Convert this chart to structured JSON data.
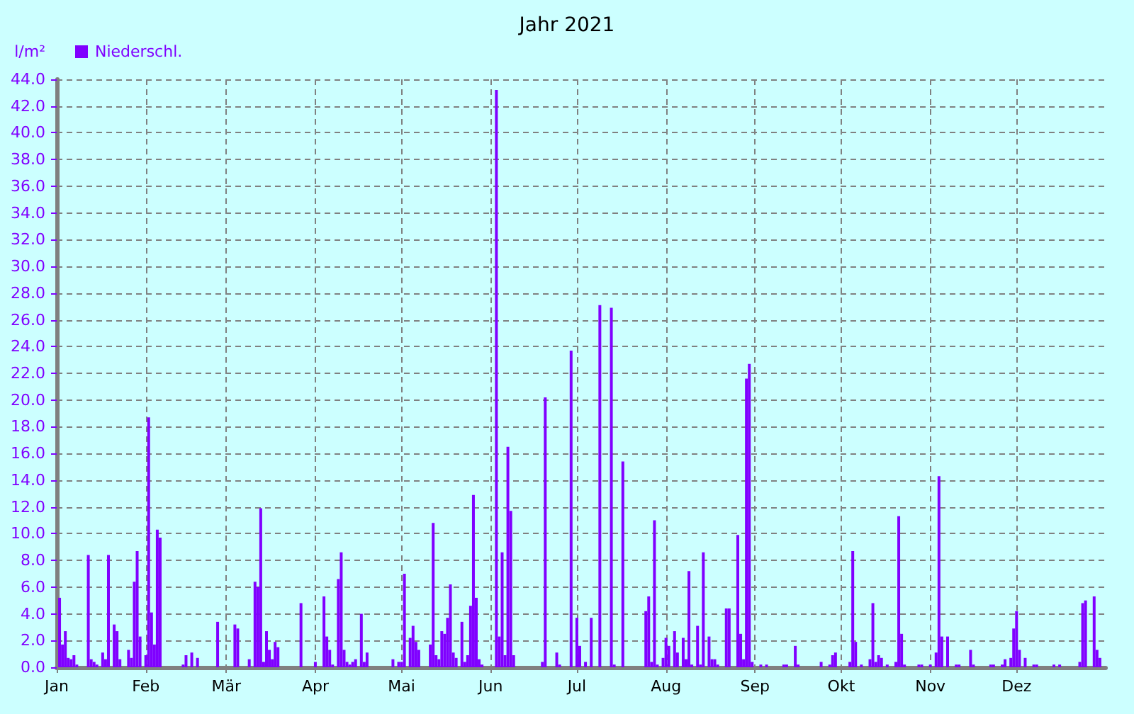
{
  "chart_data": {
    "type": "bar",
    "title": "Jahr 2021",
    "ylabel": "l/m²",
    "x": [
      "2021-01-02",
      "2021-01-03",
      "2021-01-04",
      "2021-01-05",
      "2021-01-06",
      "2021-01-07",
      "2021-01-08",
      "2021-01-12",
      "2021-01-13",
      "2021-01-14",
      "2021-01-15",
      "2021-01-17",
      "2021-01-18",
      "2021-01-19",
      "2021-01-21",
      "2021-01-22",
      "2021-01-23",
      "2021-01-26",
      "2021-01-27",
      "2021-01-28",
      "2021-01-29",
      "2021-01-30",
      "2021-02-01",
      "2021-02-02",
      "2021-02-03",
      "2021-02-04",
      "2021-02-05",
      "2021-02-06",
      "2021-02-14",
      "2021-02-15",
      "2021-02-17",
      "2021-02-19",
      "2021-02-26",
      "2021-03-04",
      "2021-03-05",
      "2021-03-09",
      "2021-03-11",
      "2021-03-12",
      "2021-03-13",
      "2021-03-14",
      "2021-03-15",
      "2021-03-16",
      "2021-03-17",
      "2021-03-18",
      "2021-03-19",
      "2021-03-27",
      "2021-04-01",
      "2021-04-04",
      "2021-04-05",
      "2021-04-06",
      "2021-04-07",
      "2021-04-09",
      "2021-04-10",
      "2021-04-11",
      "2021-04-12",
      "2021-04-13",
      "2021-04-14",
      "2021-04-15",
      "2021-04-17",
      "2021-04-18",
      "2021-04-19",
      "2021-04-28",
      "2021-04-30",
      "2021-05-01",
      "2021-05-02",
      "2021-05-04",
      "2021-05-05",
      "2021-05-06",
      "2021-05-07",
      "2021-05-11",
      "2021-05-12",
      "2021-05-13",
      "2021-05-14",
      "2021-05-15",
      "2021-05-16",
      "2021-05-17",
      "2021-05-18",
      "2021-05-19",
      "2021-05-20",
      "2021-05-22",
      "2021-05-23",
      "2021-05-24",
      "2021-05-25",
      "2021-05-26",
      "2021-05-27",
      "2021-05-28",
      "2021-05-29",
      "2021-06-03",
      "2021-06-04",
      "2021-06-05",
      "2021-06-06",
      "2021-06-07",
      "2021-06-08",
      "2021-06-09",
      "2021-06-19",
      "2021-06-20",
      "2021-06-24",
      "2021-06-25",
      "2021-06-29",
      "2021-07-01",
      "2021-07-02",
      "2021-07-04",
      "2021-07-06",
      "2021-07-09",
      "2021-07-13",
      "2021-07-14",
      "2021-07-17",
      "2021-07-25",
      "2021-07-26",
      "2021-07-27",
      "2021-07-28",
      "2021-07-29",
      "2021-07-31",
      "2021-08-01",
      "2021-08-02",
      "2021-08-04",
      "2021-08-05",
      "2021-08-07",
      "2021-08-08",
      "2021-08-09",
      "2021-08-10",
      "2021-08-12",
      "2021-08-13",
      "2021-08-14",
      "2021-08-16",
      "2021-08-17",
      "2021-08-18",
      "2021-08-19",
      "2021-08-22",
      "2021-08-23",
      "2021-08-26",
      "2021-08-27",
      "2021-08-28",
      "2021-08-29",
      "2021-08-30",
      "2021-08-31",
      "2021-09-03",
      "2021-09-05",
      "2021-09-11",
      "2021-09-12",
      "2021-09-15",
      "2021-09-16",
      "2021-09-24",
      "2021-09-27",
      "2021-09-28",
      "2021-09-29",
      "2021-10-04",
      "2021-10-05",
      "2021-10-06",
      "2021-10-08",
      "2021-10-11",
      "2021-10-12",
      "2021-10-13",
      "2021-10-14",
      "2021-10-15",
      "2021-10-17",
      "2021-10-20",
      "2021-10-21",
      "2021-10-22",
      "2021-10-23",
      "2021-10-28",
      "2021-10-29",
      "2021-11-01",
      "2021-11-03",
      "2021-11-04",
      "2021-11-05",
      "2021-11-07",
      "2021-11-10",
      "2021-11-11",
      "2021-11-15",
      "2021-11-16",
      "2021-11-22",
      "2021-11-23",
      "2021-11-26",
      "2021-11-27",
      "2021-11-29",
      "2021-11-30",
      "2021-12-01",
      "2021-12-02",
      "2021-12-04",
      "2021-12-07",
      "2021-12-08",
      "2021-12-14",
      "2021-12-16",
      "2021-12-23",
      "2021-12-24",
      "2021-12-25",
      "2021-12-28",
      "2021-12-29",
      "2021-12-30"
    ],
    "series": [
      {
        "name": "Niederschl.",
        "color": "#8000ff",
        "values": [
          5.2,
          1.7,
          2.7,
          0.7,
          0.6,
          0.9,
          0.2,
          8.4,
          0.6,
          0.4,
          0.2,
          1.1,
          0.6,
          8.4,
          3.2,
          2.7,
          0.6,
          1.3,
          0.7,
          6.4,
          8.7,
          2.3,
          0.9,
          18.7,
          4.1,
          1.7,
          10.3,
          9.7,
          0.2,
          0.9,
          1.1,
          0.7,
          3.4,
          3.2,
          2.9,
          0.6,
          6.4,
          6.0,
          11.9,
          0.4,
          2.7,
          1.3,
          0.6,
          1.9,
          1.5,
          4.8,
          0.4,
          5.3,
          2.3,
          1.3,
          0.2,
          6.6,
          8.6,
          1.3,
          0.4,
          0.2,
          0.4,
          0.6,
          4.0,
          0.4,
          1.1,
          0.6,
          0.4,
          0.4,
          7.0,
          2.2,
          3.1,
          1.9,
          1.3,
          1.7,
          10.8,
          0.9,
          0.6,
          2.7,
          2.5,
          3.7,
          6.2,
          1.1,
          0.7,
          3.4,
          0.4,
          0.9,
          4.6,
          12.9,
          5.2,
          0.6,
          0.2,
          43.2,
          2.3,
          8.6,
          0.9,
          16.5,
          11.7,
          0.9,
          0.4,
          20.2,
          1.1,
          0.2,
          23.7,
          3.7,
          1.6,
          0.4,
          3.7,
          27.1,
          26.9,
          0.2,
          15.4,
          4.2,
          5.3,
          0.4,
          11.0,
          0.2,
          0.7,
          2.2,
          1.6,
          2.7,
          1.1,
          2.2,
          0.6,
          7.2,
          0.2,
          3.1,
          0.2,
          8.6,
          2.3,
          0.6,
          0.6,
          0.2,
          4.4,
          4.4,
          9.9,
          2.5,
          0.6,
          21.6,
          22.7,
          0.4,
          0.2,
          0.2,
          0.2,
          0.2,
          1.6,
          0.2,
          0.4,
          0.2,
          0.9,
          1.1,
          0.4,
          8.7,
          1.9,
          0.2,
          0.6,
          4.8,
          0.4,
          0.9,
          0.7,
          0.2,
          0.4,
          11.3,
          2.5,
          0.2,
          0.2,
          0.2,
          0.2,
          1.1,
          14.3,
          2.3,
          2.3,
          0.2,
          0.2,
          1.3,
          0.2,
          0.2,
          0.2,
          0.2,
          0.6,
          0.7,
          2.9,
          4.2,
          1.3,
          0.7,
          0.2,
          0.2,
          0.2,
          0.2,
          0.4,
          4.8,
          5.0,
          5.3,
          1.3,
          0.7
        ]
      }
    ],
    "xlim": [
      "2021-01-01",
      "2022-01-01"
    ],
    "xticks": [
      {
        "value": "2021-01-01",
        "label": "Jan"
      },
      {
        "value": "2021-02-01",
        "label": "Feb"
      },
      {
        "value": "2021-03-01",
        "label": "Mär"
      },
      {
        "value": "2021-04-01",
        "label": "Apr"
      },
      {
        "value": "2021-05-01",
        "label": "Mai"
      },
      {
        "value": "2021-06-01",
        "label": "Jun"
      },
      {
        "value": "2021-07-01",
        "label": "Jul"
      },
      {
        "value": "2021-08-01",
        "label": "Aug"
      },
      {
        "value": "2021-09-01",
        "label": "Sep"
      },
      {
        "value": "2021-10-01",
        "label": "Okt"
      },
      {
        "value": "2021-11-01",
        "label": "Nov"
      },
      {
        "value": "2021-12-01",
        "label": "Dez"
      }
    ],
    "ylim": [
      0,
      44
    ],
    "yticks": [
      {
        "value": 0,
        "label": "0.0"
      },
      {
        "value": 2,
        "label": "2.0"
      },
      {
        "value": 4,
        "label": "4.0"
      },
      {
        "value": 6,
        "label": "6.0"
      },
      {
        "value": 8,
        "label": "8.0"
      },
      {
        "value": 10,
        "label": "10.0"
      },
      {
        "value": 12,
        "label": "12.0"
      },
      {
        "value": 14,
        "label": "14.0"
      },
      {
        "value": 16,
        "label": "16.0"
      },
      {
        "value": 18,
        "label": "18.0"
      },
      {
        "value": 20,
        "label": "20.0"
      },
      {
        "value": 22,
        "label": "22.0"
      },
      {
        "value": 24,
        "label": "24.0"
      },
      {
        "value": 26,
        "label": "26.0"
      },
      {
        "value": 28,
        "label": "28.0"
      },
      {
        "value": 30,
        "label": "30.0"
      },
      {
        "value": 32,
        "label": "32.0"
      },
      {
        "value": 34,
        "label": "34.0"
      },
      {
        "value": 36,
        "label": "36.0"
      },
      {
        "value": 38,
        "label": "38.0"
      },
      {
        "value": 40,
        "label": "40.0"
      },
      {
        "value": 42,
        "label": "42.0"
      },
      {
        "value": 44,
        "label": "44.0"
      }
    ],
    "grid": true,
    "legend": "top left"
  }
}
